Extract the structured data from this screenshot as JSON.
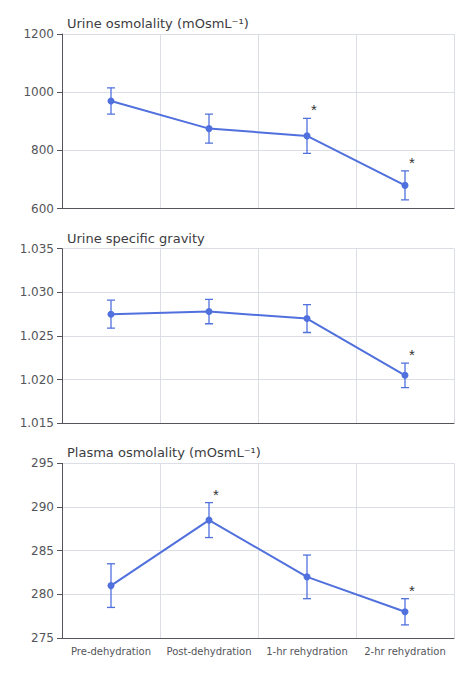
{
  "chart_data": [
    {
      "type": "line",
      "title": "Urine osmolality (mOsmL⁻¹)",
      "categories": [
        "Pre-dehydration",
        "Post-dehydration",
        "1-hr rehydration",
        "2-hr rehydration"
      ],
      "values": [
        970,
        875,
        850,
        680
      ],
      "yerr": [
        45,
        50,
        60,
        50
      ],
      "ylim": [
        600,
        1200
      ],
      "yticks": [
        600,
        800,
        1000,
        1200
      ],
      "grid": true,
      "marker": "circle",
      "tick_labels": "y",
      "annotations": [
        {
          "category": "1-hr rehydration",
          "text": "*"
        },
        {
          "category": "2-hr rehydration",
          "text": "*"
        }
      ]
    },
    {
      "type": "line",
      "title": "Urine specific gravity",
      "categories": [
        "Pre-dehydration",
        "Post-dehydration",
        "1-hr rehydration",
        "2-hr rehydration"
      ],
      "values": [
        1.0275,
        1.0278,
        1.027,
        1.0205
      ],
      "yerr": [
        0.0016,
        0.0014,
        0.0016,
        0.0014
      ],
      "ylim": [
        1.015,
        1.035
      ],
      "yticks": [
        1.015,
        {
          "value": 1.02,
          "label": "1.020"
        },
        1.025,
        {
          "value": 1.03,
          "label": "1.030"
        },
        1.035
      ],
      "grid": true,
      "marker": "circle",
      "tick_labels": "y",
      "annotations": [
        {
          "category": "2-hr rehydration",
          "text": "*"
        }
      ]
    },
    {
      "type": "line",
      "title": "Plasma osmolality (mOsmL⁻¹)",
      "categories": [
        "Pre-dehydration",
        "Post-dehydration",
        "1-hr rehydration",
        "2-hr rehydration"
      ],
      "values": [
        281,
        288.5,
        282,
        278
      ],
      "yerr": [
        2.5,
        2.0,
        2.5,
        1.5
      ],
      "ylim": [
        275,
        295
      ],
      "yticks": [
        275,
        280,
        285,
        290,
        295
      ],
      "grid": true,
      "marker": "circle",
      "annotations": [
        {
          "category": "Post-dehydration",
          "text": "*"
        },
        {
          "category": "2-hr rehydration",
          "text": "*"
        }
      ]
    }
  ]
}
